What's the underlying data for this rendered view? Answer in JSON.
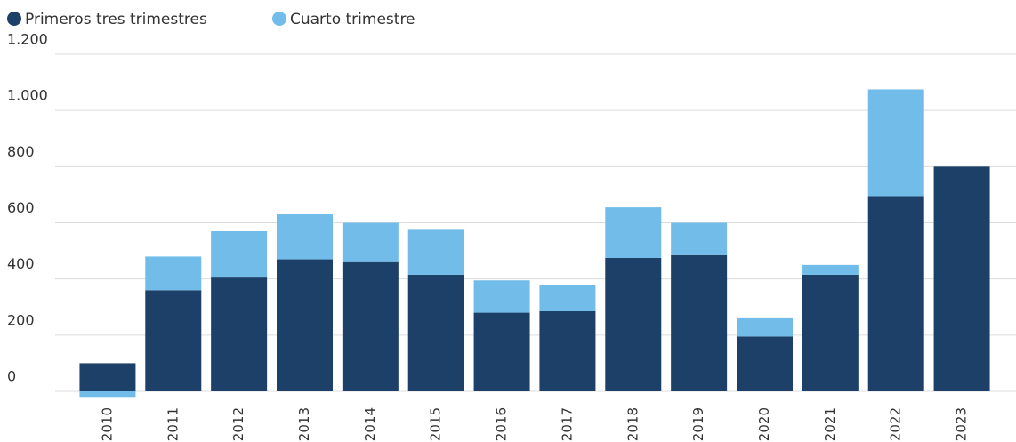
{
  "chart_data": {
    "type": "stacked_bar",
    "categories": [
      "2010",
      "2011",
      "2012",
      "2013",
      "2014",
      "2015",
      "2016",
      "2017",
      "2018",
      "2019",
      "2020",
      "2021",
      "2022",
      "2023"
    ],
    "series": [
      {
        "name": "Primeros tres trimestres",
        "color": "#1d4068",
        "values": [
          100,
          360,
          405,
          470,
          460,
          415,
          280,
          285,
          475,
          485,
          195,
          415,
          695,
          800
        ]
      },
      {
        "name": "Cuarto trimestre",
        "color": "#72bce9",
        "values": [
          -20,
          120,
          165,
          160,
          140,
          160,
          115,
          95,
          180,
          115,
          65,
          35,
          380,
          0
        ]
      }
    ],
    "ylim": [
      0,
      1200
    ],
    "yticks": [
      0,
      200,
      400,
      600,
      800,
      {
        "value": 1000,
        "label": "1.000"
      },
      {
        "value": 1200,
        "label": "1.200"
      }
    ],
    "grid": true,
    "legend": "top"
  }
}
